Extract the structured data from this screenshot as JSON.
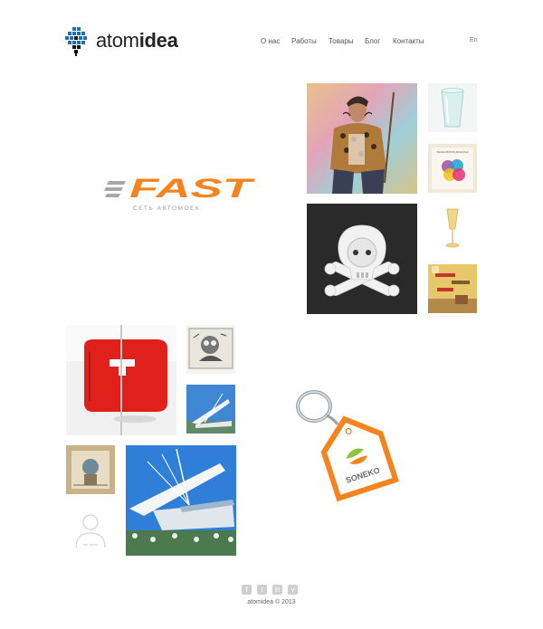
{
  "header": {
    "logo_text_light": "atom",
    "logo_text_bold": "idea",
    "nav": [
      "О нас",
      "Работы",
      "Товары",
      "Блог",
      "Контакты"
    ],
    "lang": "En"
  },
  "portfolio": {
    "fast_logo": {
      "word": "FAST",
      "tagline": "СЕТЬ АВТОМОЕК"
    },
    "soneko": {
      "word": "SONEKO"
    },
    "color_card_title": "ТЕХНОЛОГИЯ ДИЗАЙНА",
    "no_photo_label": "нет фото"
  },
  "footer": {
    "social": [
      "f",
      "t",
      "in",
      "v"
    ],
    "copyright": "atomidea © 2013"
  },
  "colors": {
    "accent_orange": "#f5841f",
    "fast_gray": "#9a9a9a"
  }
}
